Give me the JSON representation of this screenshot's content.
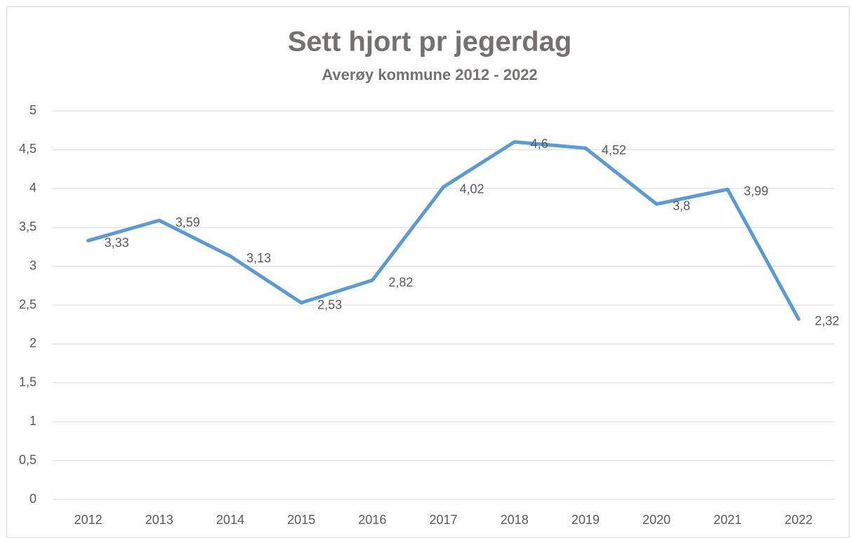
{
  "chart_data": {
    "type": "line",
    "title": "Sett hjort pr jegerdag",
    "subtitle": "Averøy kommune 2012 - 2022",
    "categories": [
      "2012",
      "2013",
      "2014",
      "2015",
      "2016",
      "2017",
      "2018",
      "2019",
      "2020",
      "2021",
      "2022"
    ],
    "values": [
      3.33,
      3.59,
      3.13,
      2.53,
      2.82,
      4.02,
      4.6,
      4.52,
      3.8,
      3.99,
      2.32
    ],
    "value_labels": [
      "3,33",
      "3,59",
      "3,13",
      "2,53",
      "2,82",
      "4,02",
      "4,6",
      "4,52",
      "3,8",
      "3,99",
      "2,32"
    ],
    "color": "#5b9bd5",
    "ylim": [
      0,
      5
    ],
    "yticks": [
      0,
      {
        "value": 0.5,
        "label": "0,5"
      },
      1,
      {
        "value": 1.5,
        "label": "1,5"
      },
      2,
      {
        "value": 2.5,
        "label": "2,5"
      },
      3,
      {
        "value": 3.5,
        "label": "3,5"
      },
      4,
      {
        "value": 4.5,
        "label": "4,5"
      },
      5
    ],
    "grid": true
  }
}
